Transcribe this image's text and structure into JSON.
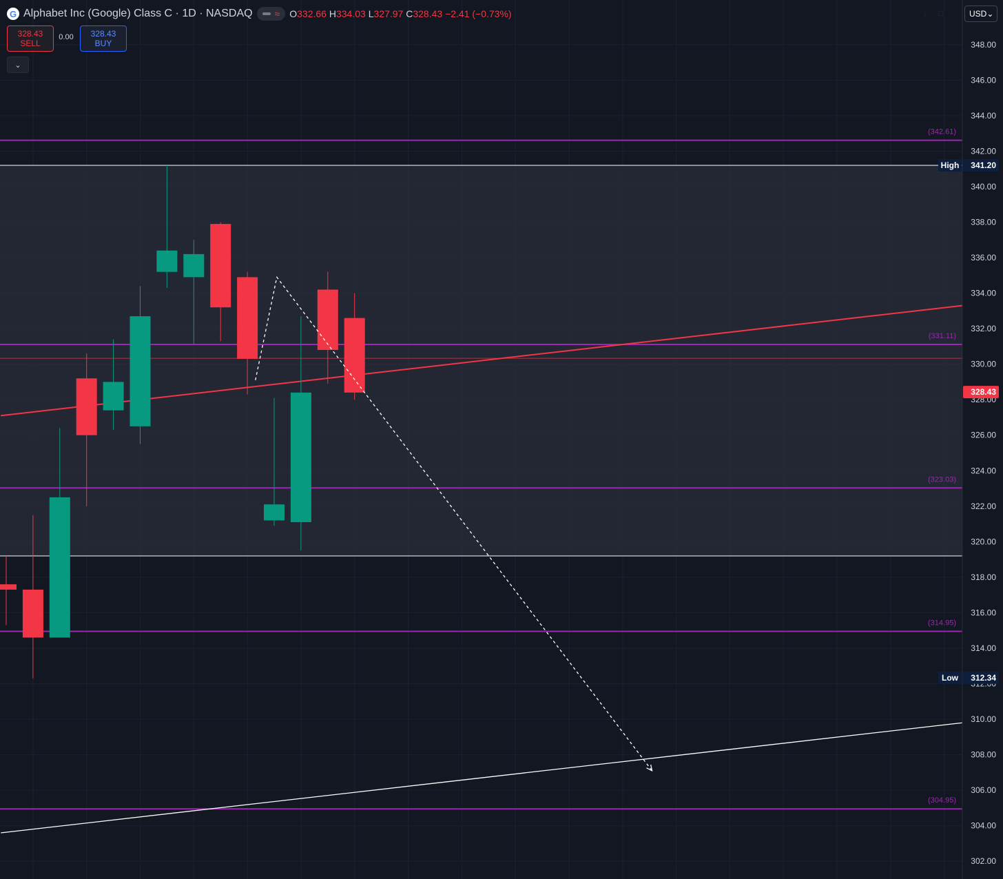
{
  "header": {
    "logo_letter": "G",
    "title": "Alphabet Inc (Google) Class C · 1D · NASDAQ",
    "open_label": "O",
    "open_value": "332.66",
    "high_label": "H",
    "high_value": "334.03",
    "low_label": "L",
    "low_value": "327.97",
    "close_label": "C",
    "close_value": "328.43",
    "change": "−2.41 (−0.73%)"
  },
  "trade": {
    "sell_price": "328.43",
    "sell_label": "SELL",
    "buy_price": "328.43",
    "buy_label": "BUY",
    "spread": "0.00"
  },
  "currency": "USD",
  "colors": {
    "background": "#131722",
    "zone": "#2a2e39",
    "up": "#089981",
    "down": "#f23645",
    "level": "#9c27b0",
    "level_text": "#9c27b0",
    "trendline_red": "#f23645",
    "trendline_white": "#ffffff",
    "axis_text": "#d1d4dc",
    "grid": "#1c2030"
  },
  "chart_data": {
    "type": "candlestick",
    "ylim": [
      301,
      349
    ],
    "ticks": [
      302,
      304,
      306,
      308,
      310,
      312,
      314,
      316,
      318,
      320,
      322,
      324,
      326,
      328,
      330,
      332,
      334,
      336,
      338,
      340,
      342,
      344,
      346,
      348
    ],
    "candles": [
      {
        "o": 317.6,
        "h": 319.2,
        "l": 315.3,
        "c": 317.3
      },
      {
        "o": 317.3,
        "h": 321.5,
        "l": 312.3,
        "c": 314.6
      },
      {
        "o": 314.6,
        "h": 326.4,
        "l": 314.6,
        "c": 322.5
      },
      {
        "o": 329.2,
        "h": 330.6,
        "l": 322.0,
        "c": 326.0
      },
      {
        "o": 327.4,
        "h": 331.4,
        "l": 326.3,
        "c": 329.0
      },
      {
        "o": 326.5,
        "h": 334.4,
        "l": 325.5,
        "c": 332.7
      },
      {
        "o": 335.2,
        "h": 341.2,
        "l": 334.3,
        "c": 336.4
      },
      {
        "o": 334.9,
        "h": 337.0,
        "l": 331.1,
        "c": 336.2
      },
      {
        "o": 337.9,
        "h": 338.0,
        "l": 331.3,
        "c": 333.2
      },
      {
        "o": 334.9,
        "h": 335.2,
        "l": 328.3,
        "c": 330.3
      },
      {
        "o": 321.2,
        "h": 328.1,
        "l": 320.9,
        "c": 322.1
      },
      {
        "o": 321.1,
        "h": 332.7,
        "l": 319.5,
        "c": 328.4
      },
      {
        "o": 334.2,
        "h": 335.2,
        "l": 328.9,
        "c": 330.8
      },
      {
        "o": 332.6,
        "h": 334.0,
        "l": 328.0,
        "c": 328.4
      }
    ],
    "levels": [
      {
        "value": 342.61,
        "label": "(342.61)"
      },
      {
        "value": 331.11,
        "label": "(331.11)"
      },
      {
        "value": 323.03,
        "label": "(323.03)"
      },
      {
        "value": 314.95,
        "label": "(314.95)"
      },
      {
        "value": 304.95,
        "label": "(304.95)"
      }
    ],
    "zone": {
      "top": 341.2,
      "bottom": 319.2
    },
    "high": {
      "label": "High",
      "value": "341.20"
    },
    "low": {
      "label": "Low",
      "value": "312.34"
    },
    "last": {
      "value": "328.43",
      "level": 328.43
    },
    "close_line": 330.33,
    "trendline_red": {
      "from": [
        -0.2,
        327.1
      ],
      "to": [
        36.5,
        333.3
      ]
    },
    "trendline_white": {
      "from": [
        -0.2,
        303.6
      ],
      "to": [
        36.5,
        309.8
      ]
    },
    "projection": [
      [
        9.3,
        329.1
      ],
      [
        10.1,
        334.9
      ],
      [
        24.1,
        307.1
      ]
    ]
  }
}
